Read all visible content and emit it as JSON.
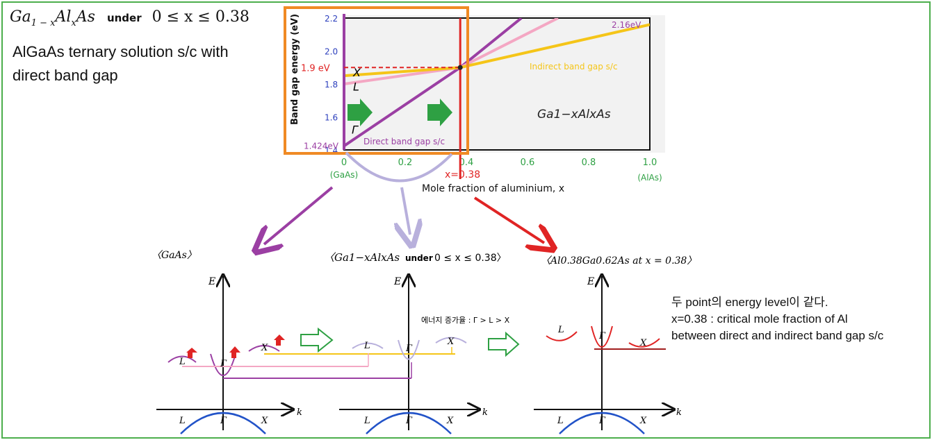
{
  "header": {
    "formula_base": "Ga",
    "formula_sub1": "1 − x",
    "formula_mid": "Al",
    "formula_sub2": "x",
    "formula_end": "As",
    "under_word": "under",
    "condition": "0 ≤ x ≤ 0.38"
  },
  "intro": {
    "line1": "AlGaAs ternary solution s/c with",
    "line2": "direct band gap"
  },
  "colors": {
    "frame": "#4cae4c",
    "highlight_box": "#f08a24",
    "direct": "#9b3fa3",
    "indirect": "#f5c518",
    "L_line": "#f4a7c3",
    "critical": "#e02424",
    "axis_green": "#2ea043",
    "tick_blue": "#2c3fbd",
    "band_blue": "#2253c8",
    "lavender": "#b8b0dc"
  },
  "chart_data": {
    "type": "line",
    "ylabel": "Band gap energy (eV)",
    "xlabel": "Mole fraction of aluminium, x",
    "xlim": [
      0,
      1.0
    ],
    "ylim": [
      1.4,
      2.2
    ],
    "xticks": [
      "0",
      "0.2",
      "0.4",
      "0.6",
      "0.8",
      "1.0"
    ],
    "yticks": [
      "1.4",
      "1.6",
      "1.8",
      "2.0",
      "2.2"
    ],
    "x_end_labels": {
      "left": "(GaAs)",
      "right": "(AlAs)"
    },
    "series": [
      {
        "name": "Γ",
        "x": [
          0,
          0.38,
          0.58
        ],
        "y": [
          1.424,
          1.9,
          2.2
        ]
      },
      {
        "name": "L",
        "x": [
          0,
          0.38,
          0.7
        ],
        "y": [
          1.8,
          1.9,
          2.2
        ]
      },
      {
        "name": "X",
        "x": [
          0,
          0.38,
          1.0
        ],
        "y": [
          1.85,
          1.9,
          2.16
        ]
      }
    ],
    "annotations": {
      "gaas_gap": "1.424eV",
      "crossing_energy": "1.9 eV",
      "alas_gap": "2.16eV",
      "critical_x": "x=0.38",
      "direct_label": "Direct band gap s/c",
      "indirect_label": "Indirect band gap s/c",
      "inner_formula": "Ga1−xAlxAs"
    }
  },
  "panels": {
    "left_title": "〈GaAs〉",
    "mid_title_formula": "〈Ga1−xAlxAs",
    "mid_title_under": "under",
    "mid_title_cond": "0 ≤ x ≤ 0.38〉",
    "right_title": "〈Al0.38Ga0.62As  at  x = 0.38〉",
    "axis_E": "E",
    "axis_k": "k",
    "valley_L": "L",
    "valley_G": "Γ",
    "valley_X": "X",
    "energy_order": "에너지 증가율 : Γ > L > X"
  },
  "notes": {
    "line1": "두 point의 energy level이 같다.",
    "line2": "x=0.38 : critical mole fraction of Al",
    "line3": "between direct and indirect band gap s/c"
  }
}
